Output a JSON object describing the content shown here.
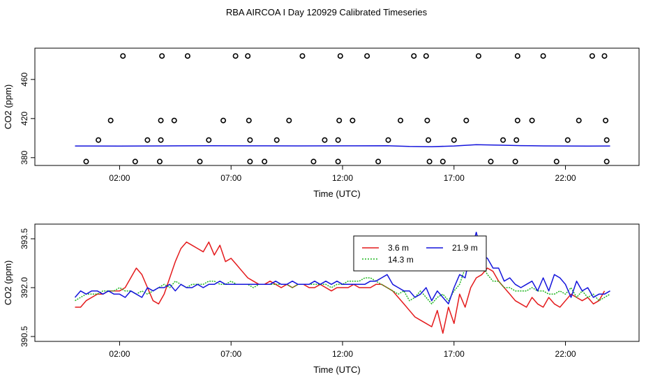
{
  "title": "RBA AIRCOA I  Day 120929  Calibrated Timeseries",
  "colors": {
    "red": "#e41a1c",
    "green": "#1fb51f",
    "blue": "#1414dc",
    "axis": "#000000"
  },
  "chart_data": [
    {
      "type": "scatter",
      "xlabel": "Time (UTC)",
      "ylabel": "CO2 (ppm)",
      "x_unit": "hours UTC",
      "xlim": [
        -1.8,
        25.3
      ],
      "ylim": [
        372,
        492
      ],
      "x_ticks": [
        {
          "value": 2,
          "label": "02:00"
        },
        {
          "value": 7,
          "label": "07:00"
        },
        {
          "value": 12,
          "label": "12:00"
        },
        {
          "value": 17,
          "label": "17:00"
        },
        {
          "value": 22,
          "label": "22:00"
        }
      ],
      "y_ticks": [
        {
          "value": 380,
          "label": "380"
        },
        {
          "value": 420,
          "label": "420"
        },
        {
          "value": 460,
          "label": "460"
        }
      ],
      "points": [
        {
          "x": 2.15,
          "y": 484
        },
        {
          "x": 3.9,
          "y": 484
        },
        {
          "x": 5.05,
          "y": 484
        },
        {
          "x": 7.2,
          "y": 484
        },
        {
          "x": 7.75,
          "y": 484
        },
        {
          "x": 10.2,
          "y": 484
        },
        {
          "x": 11.9,
          "y": 484
        },
        {
          "x": 13.1,
          "y": 484
        },
        {
          "x": 15.2,
          "y": 484
        },
        {
          "x": 15.75,
          "y": 484
        },
        {
          "x": 18.1,
          "y": 484
        },
        {
          "x": 19.85,
          "y": 484
        },
        {
          "x": 21.0,
          "y": 484
        },
        {
          "x": 23.2,
          "y": 484
        },
        {
          "x": 23.75,
          "y": 484
        },
        {
          "x": 1.6,
          "y": 418
        },
        {
          "x": 3.85,
          "y": 418
        },
        {
          "x": 4.45,
          "y": 418
        },
        {
          "x": 6.65,
          "y": 418
        },
        {
          "x": 7.8,
          "y": 418
        },
        {
          "x": 9.6,
          "y": 418
        },
        {
          "x": 11.85,
          "y": 418
        },
        {
          "x": 12.45,
          "y": 418
        },
        {
          "x": 14.6,
          "y": 418
        },
        {
          "x": 15.8,
          "y": 418
        },
        {
          "x": 17.55,
          "y": 418
        },
        {
          "x": 19.85,
          "y": 418
        },
        {
          "x": 20.5,
          "y": 418
        },
        {
          "x": 22.6,
          "y": 418
        },
        {
          "x": 23.8,
          "y": 418
        },
        {
          "x": 1.05,
          "y": 398
        },
        {
          "x": 3.25,
          "y": 398
        },
        {
          "x": 3.85,
          "y": 398
        },
        {
          "x": 6.0,
          "y": 398
        },
        {
          "x": 7.85,
          "y": 398
        },
        {
          "x": 9.05,
          "y": 398
        },
        {
          "x": 11.2,
          "y": 398
        },
        {
          "x": 11.8,
          "y": 398
        },
        {
          "x": 14.05,
          "y": 398
        },
        {
          "x": 15.85,
          "y": 398
        },
        {
          "x": 17.0,
          "y": 398
        },
        {
          "x": 19.2,
          "y": 398
        },
        {
          "x": 19.8,
          "y": 398
        },
        {
          "x": 22.1,
          "y": 398
        },
        {
          "x": 23.85,
          "y": 398
        },
        {
          "x": 0.5,
          "y": 376
        },
        {
          "x": 2.7,
          "y": 376
        },
        {
          "x": 3.8,
          "y": 376
        },
        {
          "x": 5.6,
          "y": 376
        },
        {
          "x": 7.85,
          "y": 376
        },
        {
          "x": 8.5,
          "y": 376
        },
        {
          "x": 10.7,
          "y": 376
        },
        {
          "x": 11.8,
          "y": 376
        },
        {
          "x": 13.6,
          "y": 376
        },
        {
          "x": 15.9,
          "y": 376
        },
        {
          "x": 16.5,
          "y": 376
        },
        {
          "x": 18.65,
          "y": 376
        },
        {
          "x": 19.75,
          "y": 376
        },
        {
          "x": 21.6,
          "y": 376
        },
        {
          "x": 23.85,
          "y": 376
        }
      ],
      "line_series": [
        {
          "color": "#1414dc",
          "x": [
            0,
            2,
            4,
            6,
            8,
            10,
            12,
            14,
            15,
            16,
            17,
            18,
            19,
            20,
            21,
            22,
            23,
            24
          ],
          "y": [
            391.9,
            391.8,
            392.0,
            392.2,
            392.1,
            392.0,
            392.1,
            392.2,
            391.4,
            391.2,
            391.9,
            393.2,
            392.8,
            392.3,
            392.0,
            391.9,
            391.8,
            391.9
          ]
        }
      ]
    },
    {
      "type": "line",
      "xlabel": "Time (UTC)",
      "ylabel": "CO2 (ppm)",
      "x_unit": "hours UTC",
      "xlim": [
        -1.8,
        25.3
      ],
      "ylim": [
        390.35,
        393.95
      ],
      "x_ticks": [
        {
          "value": 2,
          "label": "02:00"
        },
        {
          "value": 7,
          "label": "07:00"
        },
        {
          "value": 12,
          "label": "12:00"
        },
        {
          "value": 17,
          "label": "17:00"
        },
        {
          "value": 22,
          "label": "22:00"
        }
      ],
      "y_ticks": [
        {
          "value": 390.5,
          "label": "390.5"
        },
        {
          "value": 392.0,
          "label": "392.0"
        },
        {
          "value": 393.5,
          "label": "393.5"
        }
      ],
      "legend": {
        "placement": "top-center"
      },
      "series": [
        {
          "name": "3.6 m",
          "color": "#e41a1c",
          "x": [
            0.0,
            0.25,
            0.5,
            0.75,
            1.0,
            1.25,
            1.5,
            1.75,
            2.0,
            2.25,
            2.5,
            2.75,
            3.0,
            3.25,
            3.5,
            3.75,
            4.0,
            4.25,
            4.5,
            4.75,
            5.0,
            5.25,
            5.5,
            5.75,
            6.0,
            6.25,
            6.5,
            6.75,
            7.0,
            7.25,
            7.5,
            7.75,
            8.0,
            8.25,
            8.5,
            8.75,
            9.0,
            9.25,
            9.5,
            9.75,
            10.0,
            10.25,
            10.5,
            10.75,
            11.0,
            11.25,
            11.5,
            11.75,
            12.0,
            12.25,
            12.5,
            12.75,
            13.0,
            13.25,
            13.5,
            13.75,
            14.0,
            14.25,
            14.5,
            14.75,
            15.0,
            15.25,
            15.5,
            15.75,
            16.0,
            16.25,
            16.5,
            16.75,
            17.0,
            17.25,
            17.5,
            17.75,
            18.0,
            18.25,
            18.5,
            18.75,
            19.0,
            19.25,
            19.5,
            19.75,
            20.0,
            20.25,
            20.5,
            20.75,
            21.0,
            21.25,
            21.5,
            21.75,
            22.0,
            22.25,
            22.5,
            22.75,
            23.0,
            23.25,
            23.5,
            23.75
          ],
          "y": [
            391.4,
            391.4,
            391.6,
            391.7,
            391.8,
            391.8,
            391.9,
            391.9,
            391.9,
            392.0,
            392.3,
            392.6,
            392.4,
            392.0,
            391.6,
            391.5,
            391.8,
            392.3,
            392.8,
            393.2,
            393.4,
            393.3,
            393.2,
            393.1,
            393.4,
            393.0,
            393.3,
            392.8,
            392.9,
            392.7,
            392.5,
            392.3,
            392.2,
            392.1,
            392.1,
            392.2,
            392.1,
            392.0,
            392.1,
            392.0,
            392.1,
            392.1,
            392.0,
            392.0,
            392.1,
            392.0,
            391.9,
            392.0,
            392.0,
            392.0,
            392.1,
            392.0,
            392.0,
            392.0,
            392.1,
            392.1,
            392.0,
            391.9,
            391.7,
            391.5,
            391.3,
            391.1,
            391.0,
            390.9,
            390.8,
            391.3,
            390.6,
            391.4,
            390.9,
            391.8,
            391.4,
            392.0,
            392.3,
            392.4,
            392.6,
            392.5,
            392.2,
            392.0,
            391.8,
            391.6,
            391.5,
            391.4,
            391.7,
            391.5,
            391.4,
            391.7,
            391.5,
            391.4,
            391.6,
            391.8,
            391.7,
            391.6,
            391.7,
            391.5,
            391.6,
            391.9
          ]
        },
        {
          "name": "14.3 m",
          "color": "#1fb51f",
          "x": [
            0.0,
            0.25,
            0.5,
            0.75,
            1.0,
            1.25,
            1.5,
            1.75,
            2.0,
            2.25,
            2.5,
            2.75,
            3.0,
            3.25,
            3.5,
            3.75,
            4.0,
            4.25,
            4.5,
            4.75,
            5.0,
            5.25,
            5.5,
            5.75,
            6.0,
            6.25,
            6.5,
            6.75,
            7.0,
            7.25,
            7.5,
            7.75,
            8.0,
            8.25,
            8.5,
            8.75,
            9.0,
            9.25,
            9.5,
            9.75,
            10.0,
            10.25,
            10.5,
            10.75,
            11.0,
            11.25,
            11.5,
            11.75,
            12.0,
            12.25,
            12.5,
            12.75,
            13.0,
            13.25,
            13.5,
            13.75,
            14.0,
            14.25,
            14.5,
            14.75,
            15.0,
            15.25,
            15.5,
            15.75,
            16.0,
            16.25,
            16.5,
            16.75,
            17.0,
            17.25,
            17.5,
            17.75,
            18.0,
            18.25,
            18.5,
            18.75,
            19.0,
            19.25,
            19.5,
            19.75,
            20.0,
            20.25,
            20.5,
            20.75,
            21.0,
            21.25,
            21.5,
            21.75,
            22.0,
            22.25,
            22.5,
            22.75,
            23.0,
            23.25,
            23.5,
            23.75,
            24.0
          ],
          "y": [
            391.6,
            391.7,
            391.8,
            391.8,
            391.8,
            391.9,
            391.9,
            391.9,
            392.0,
            391.9,
            391.9,
            391.8,
            391.9,
            391.8,
            391.9,
            392.0,
            392.1,
            392.0,
            392.2,
            392.1,
            392.0,
            392.1,
            392.1,
            392.1,
            392.2,
            392.2,
            392.1,
            392.1,
            392.2,
            392.1,
            392.1,
            392.1,
            392.0,
            392.1,
            392.1,
            392.1,
            392.1,
            392.1,
            392.1,
            392.0,
            392.1,
            392.1,
            392.1,
            392.1,
            392.1,
            392.1,
            392.0,
            392.1,
            392.1,
            392.2,
            392.2,
            392.2,
            392.3,
            392.3,
            392.2,
            392.1,
            392.0,
            391.9,
            391.8,
            391.9,
            391.6,
            391.7,
            391.9,
            391.7,
            391.5,
            391.7,
            391.8,
            391.6,
            391.9,
            392.1,
            392.6,
            392.9,
            393.0,
            392.7,
            392.4,
            392.2,
            392.2,
            392.0,
            392.0,
            391.9,
            391.9,
            391.9,
            392.0,
            391.9,
            391.9,
            391.8,
            391.8,
            391.9,
            391.8,
            392.0,
            391.7,
            391.9,
            391.7,
            391.8,
            391.6,
            391.7,
            391.8
          ]
        },
        {
          "name": "21.9 m",
          "color": "#1414dc",
          "x": [
            0.0,
            0.25,
            0.5,
            0.75,
            1.0,
            1.25,
            1.5,
            1.75,
            2.0,
            2.25,
            2.5,
            2.75,
            3.0,
            3.25,
            3.5,
            3.75,
            4.0,
            4.25,
            4.5,
            4.75,
            5.0,
            5.25,
            5.5,
            5.75,
            6.0,
            6.25,
            6.5,
            6.75,
            7.0,
            7.25,
            7.5,
            7.75,
            8.0,
            8.25,
            8.5,
            8.75,
            9.0,
            9.25,
            9.5,
            9.75,
            10.0,
            10.25,
            10.5,
            10.75,
            11.0,
            11.25,
            11.5,
            11.75,
            12.0,
            12.25,
            12.5,
            12.75,
            13.0,
            13.25,
            13.5,
            13.75,
            14.0,
            14.25,
            14.5,
            14.75,
            15.0,
            15.25,
            15.5,
            15.75,
            16.0,
            16.25,
            16.5,
            16.75,
            17.0,
            17.25,
            17.5,
            17.75,
            18.0,
            18.25,
            18.5,
            18.75,
            19.0,
            19.25,
            19.5,
            19.75,
            20.0,
            20.25,
            20.5,
            20.75,
            21.0,
            21.25,
            21.5,
            21.75,
            22.0,
            22.25,
            22.5,
            22.75,
            23.0,
            23.25,
            23.5,
            23.75,
            24.0
          ],
          "y": [
            391.7,
            391.9,
            391.8,
            391.9,
            391.9,
            391.8,
            391.9,
            391.8,
            391.8,
            391.7,
            391.9,
            391.8,
            391.7,
            392.0,
            391.9,
            392.0,
            392.0,
            392.1,
            391.9,
            392.1,
            392.0,
            392.0,
            392.1,
            392.0,
            392.1,
            392.1,
            392.2,
            392.1,
            392.1,
            392.1,
            392.1,
            392.1,
            392.1,
            392.1,
            392.1,
            392.1,
            392.2,
            392.1,
            392.1,
            392.2,
            392.1,
            392.1,
            392.1,
            392.2,
            392.1,
            392.2,
            392.1,
            392.2,
            392.1,
            392.1,
            392.1,
            392.1,
            392.1,
            392.2,
            392.2,
            392.3,
            392.4,
            392.1,
            392.0,
            391.9,
            391.9,
            391.7,
            391.8,
            392.0,
            391.6,
            391.9,
            391.7,
            391.5,
            392.0,
            392.4,
            392.3,
            393.1,
            393.7,
            393.0,
            392.9,
            392.6,
            392.6,
            392.2,
            392.3,
            392.1,
            392.0,
            392.1,
            392.2,
            391.9,
            392.3,
            391.9,
            392.4,
            392.3,
            392.1,
            391.7,
            392.2,
            391.9,
            392.0,
            391.7,
            391.8,
            391.8,
            391.9
          ]
        }
      ]
    }
  ]
}
